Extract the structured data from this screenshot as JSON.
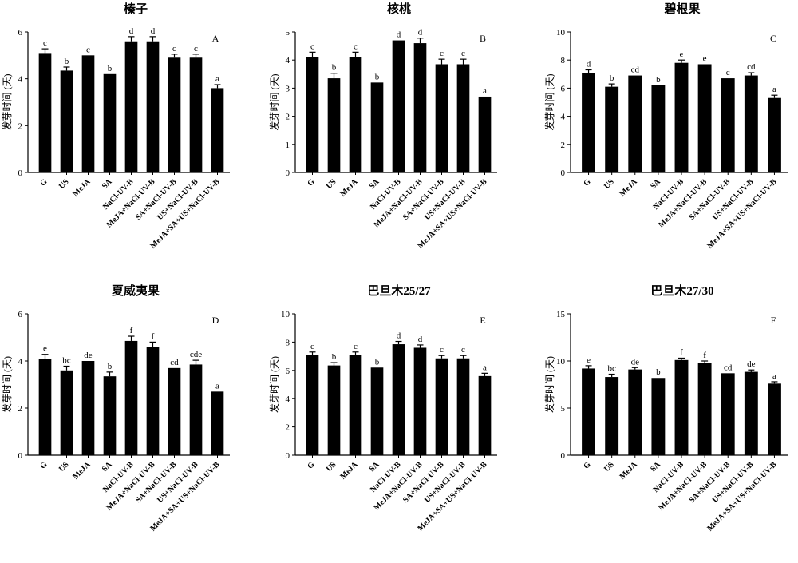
{
  "figure": {
    "ylabel": "发芽时间 (天)",
    "categories": [
      "G",
      "US",
      "MeJA",
      "SA",
      "NaCl-UV-B",
      "MeJA+NaCl-UV-B",
      "SA+NaCl-UV-B",
      "US+NaCl-UV-B",
      "MeJA+SA+US+NaCl-UV-B"
    ]
  },
  "chart_data": [
    {
      "type": "bar",
      "title": "榛子",
      "panel": "A",
      "ylabel": "发芽时间 (天)",
      "ylim": [
        0,
        6
      ],
      "yticks": [
        0,
        2,
        4,
        6
      ],
      "categories": [
        "G",
        "US",
        "MeJA",
        "SA",
        "NaCl-UV-B",
        "MeJA+NaCl-UV-B",
        "SA+NaCl-UV-B",
        "US+NaCl-UV-B",
        "MeJA+SA+US+NaCl-UV-B"
      ],
      "values": [
        5.1,
        4.35,
        5.0,
        4.2,
        5.6,
        5.6,
        4.9,
        4.9,
        3.6
      ],
      "errors": [
        0.18,
        0.15,
        0.0,
        0.0,
        0.2,
        0.2,
        0.15,
        0.15,
        0.15
      ],
      "significance": [
        "c",
        "b",
        "c",
        "b",
        "d",
        "d",
        "c",
        "c",
        "a"
      ]
    },
    {
      "type": "bar",
      "title": "核桃",
      "panel": "B",
      "ylabel": "发芽时间 (天)",
      "ylim": [
        0,
        5
      ],
      "yticks": [
        0,
        1,
        2,
        3,
        4,
        5
      ],
      "categories": [
        "G",
        "US",
        "MeJA",
        "SA",
        "NaCl-UV-B",
        "MeJA+NaCl-UV-B",
        "SA+NaCl-UV-B",
        "US+NaCl-UV-B",
        "MeJA+SA+US+NaCl-UV-B"
      ],
      "values": [
        4.1,
        3.35,
        4.1,
        3.2,
        4.7,
        4.6,
        3.85,
        3.85,
        2.7
      ],
      "errors": [
        0.18,
        0.18,
        0.18,
        0.0,
        0.0,
        0.18,
        0.18,
        0.18,
        0.0
      ],
      "significance": [
        "c",
        "b",
        "c",
        "b",
        "d",
        "d",
        "c",
        "c",
        "a"
      ]
    },
    {
      "type": "bar",
      "title": "碧根果",
      "panel": "C",
      "ylabel": "发芽时间 (天)",
      "ylim": [
        0,
        10
      ],
      "yticks": [
        0,
        2,
        4,
        6,
        8,
        10
      ],
      "categories": [
        "G",
        "US",
        "MeJA",
        "SA",
        "NaCl-UV-B",
        "MeJA+NaCl-UV-B",
        "SA+NaCl-UV-B",
        "US+NaCl-UV-B",
        "MeJA+SA+US+NaCl-UV-B"
      ],
      "values": [
        7.1,
        6.1,
        6.9,
        6.2,
        7.8,
        7.7,
        6.7,
        6.9,
        5.3
      ],
      "errors": [
        0.2,
        0.2,
        0.0,
        0.0,
        0.2,
        0.0,
        0.0,
        0.2,
        0.2
      ],
      "significance": [
        "d",
        "b",
        "cd",
        "b",
        "e",
        "e",
        "c",
        "cd",
        "a"
      ]
    },
    {
      "type": "bar",
      "title": "夏威夷果",
      "panel": "D",
      "ylabel": "发芽时间 (天)",
      "ylim": [
        0,
        6
      ],
      "yticks": [
        0,
        2,
        4,
        6
      ],
      "categories": [
        "G",
        "US",
        "MeJA",
        "SA",
        "NaCl-UV-B",
        "MeJA+NaCl-UV-B",
        "SA+NaCl-UV-B",
        "US+NaCl-UV-B",
        "MeJA+SA+US+NaCl-UV-B"
      ],
      "values": [
        4.1,
        3.6,
        4.0,
        3.35,
        4.85,
        4.6,
        3.7,
        3.85,
        2.7
      ],
      "errors": [
        0.18,
        0.18,
        0.0,
        0.18,
        0.2,
        0.2,
        0.0,
        0.18,
        0.0
      ],
      "significance": [
        "e",
        "bc",
        "de",
        "b",
        "f",
        "f",
        "cd",
        "cde",
        "a"
      ]
    },
    {
      "type": "bar",
      "title": "巴旦木25/27",
      "panel": "E",
      "ylabel": "发芽时间 (天)",
      "ylim": [
        0,
        10
      ],
      "yticks": [
        0,
        2,
        4,
        6,
        8,
        10
      ],
      "categories": [
        "G",
        "US",
        "MeJA",
        "SA",
        "NaCl-UV-B",
        "MeJA+NaCl-UV-B",
        "SA+NaCl-UV-B",
        "US+NaCl-UV-B",
        "MeJA+SA+US+NaCl-UV-B"
      ],
      "values": [
        7.1,
        6.35,
        7.1,
        6.2,
        7.85,
        7.6,
        6.85,
        6.85,
        5.6
      ],
      "errors": [
        0.2,
        0.2,
        0.2,
        0.0,
        0.2,
        0.2,
        0.2,
        0.2,
        0.2
      ],
      "significance": [
        "c",
        "b",
        "c",
        "b",
        "d",
        "d",
        "c",
        "c",
        "a"
      ]
    },
    {
      "type": "bar",
      "title": "巴旦木27/30",
      "panel": "F",
      "ylabel": "发芽时间 (天)",
      "ylim": [
        0,
        15
      ],
      "yticks": [
        0,
        5,
        10,
        15
      ],
      "categories": [
        "G",
        "US",
        "MeJA",
        "SA",
        "NaCl-UV-B",
        "MeJA+NaCl-UV-B",
        "SA+NaCl-UV-B",
        "US+NaCl-UV-B",
        "MeJA+SA+US+NaCl-UV-B"
      ],
      "values": [
        9.2,
        8.3,
        9.1,
        8.2,
        10.1,
        9.8,
        8.7,
        8.85,
        7.6
      ],
      "errors": [
        0.3,
        0.3,
        0.2,
        0.0,
        0.2,
        0.2,
        0.0,
        0.2,
        0.2
      ],
      "significance": [
        "e",
        "bc",
        "de",
        "b",
        "f",
        "f",
        "cd",
        "de",
        "a"
      ]
    }
  ]
}
